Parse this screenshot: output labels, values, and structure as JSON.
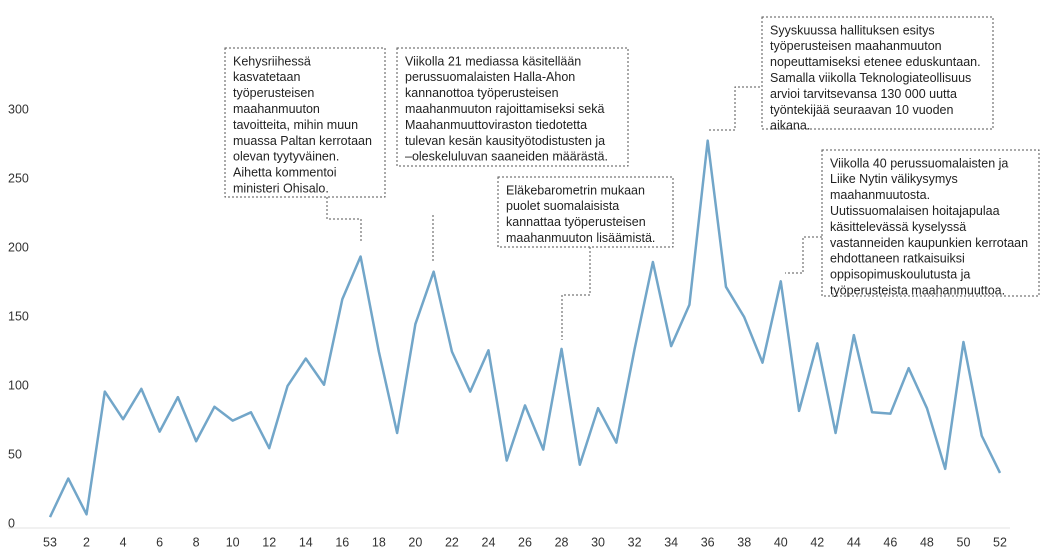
{
  "chart_data": {
    "type": "line",
    "categories": [
      "53",
      null,
      "2",
      null,
      "4",
      null,
      "6",
      null,
      "8",
      null,
      "10",
      null,
      "12",
      null,
      "14",
      null,
      "16",
      null,
      "18",
      null,
      "20",
      null,
      "22",
      null,
      "24",
      null,
      "26",
      null,
      "28",
      null,
      "30",
      null,
      "32",
      null,
      "34",
      null,
      "36",
      null,
      "38",
      null,
      "40",
      null,
      "42",
      null,
      "44",
      null,
      "46",
      null,
      "48",
      null,
      "50",
      null,
      "52"
    ],
    "values": [
      5,
      33,
      7,
      96,
      76,
      98,
      67,
      92,
      60,
      85,
      75,
      81,
      55,
      100,
      120,
      101,
      163,
      194,
      125,
      66,
      145,
      183,
      125,
      96,
      126,
      46,
      86,
      54,
      127,
      43,
      84,
      59,
      127,
      190,
      129,
      159,
      278,
      172,
      150,
      117,
      176,
      82,
      131,
      66,
      137,
      81,
      80,
      113,
      84,
      40,
      132,
      64,
      37
    ],
    "color": "#72a6c9",
    "ylim": [
      0,
      380
    ],
    "yticks": [
      0,
      50,
      100,
      150,
      200,
      250,
      300
    ],
    "grid": false,
    "annotations": [
      [
        "Kehysriihessä",
        "kasvatetaan",
        "työperusteisen",
        "maahanmuuton",
        "tavoitteita, mihin muun",
        "muassa Paltan kerrotaan",
        "olevan tyytyväinen.",
        "Aihetta kommentoi",
        "ministeri Ohisalo."
      ],
      [
        "Viikolla 21 mediassa käsitellään",
        "perussuomalaisten Halla-Ahon",
        "kannanottoa työperusteisen",
        "maahanmuuton rajoittamiseksi sekä",
        "Maahanmuuttoviraston tiedotetta",
        "tulevan kesän kausityötodistusten ja",
        "–oleskeluluvan saaneiden määrästä."
      ],
      [
        "Eläkebarometrin mukaan",
        "puolet suomalaisista",
        "kannattaa työperusteisen",
        "maahanmuuton lisäämistä."
      ],
      [
        "Syyskuussa hallituksen esitys",
        "työperusteisen maahanmuuton",
        "nopeuttamiseksi etenee eduskuntaan.",
        "Samalla viikolla Teknologiateollisuus",
        "arvioi tarvitsevansa 130 000 uutta",
        "työntekijää seuraavan 10 vuoden",
        "aikana."
      ],
      [
        "Viikolla 40 perussuomalaisten ja",
        "Liike Nytin välikysymys",
        "maahanmuutosta.",
        "Uutissuomalaisen hoitajapulaa",
        "käsittelevässä kyselyssä",
        "vastanneiden kaupunkien kerrotaan",
        "ehdottaneen ratkaisuiksi",
        "oppisopimuskoulutusta ja",
        "työperusteista maahanmuuttoa."
      ]
    ]
  }
}
